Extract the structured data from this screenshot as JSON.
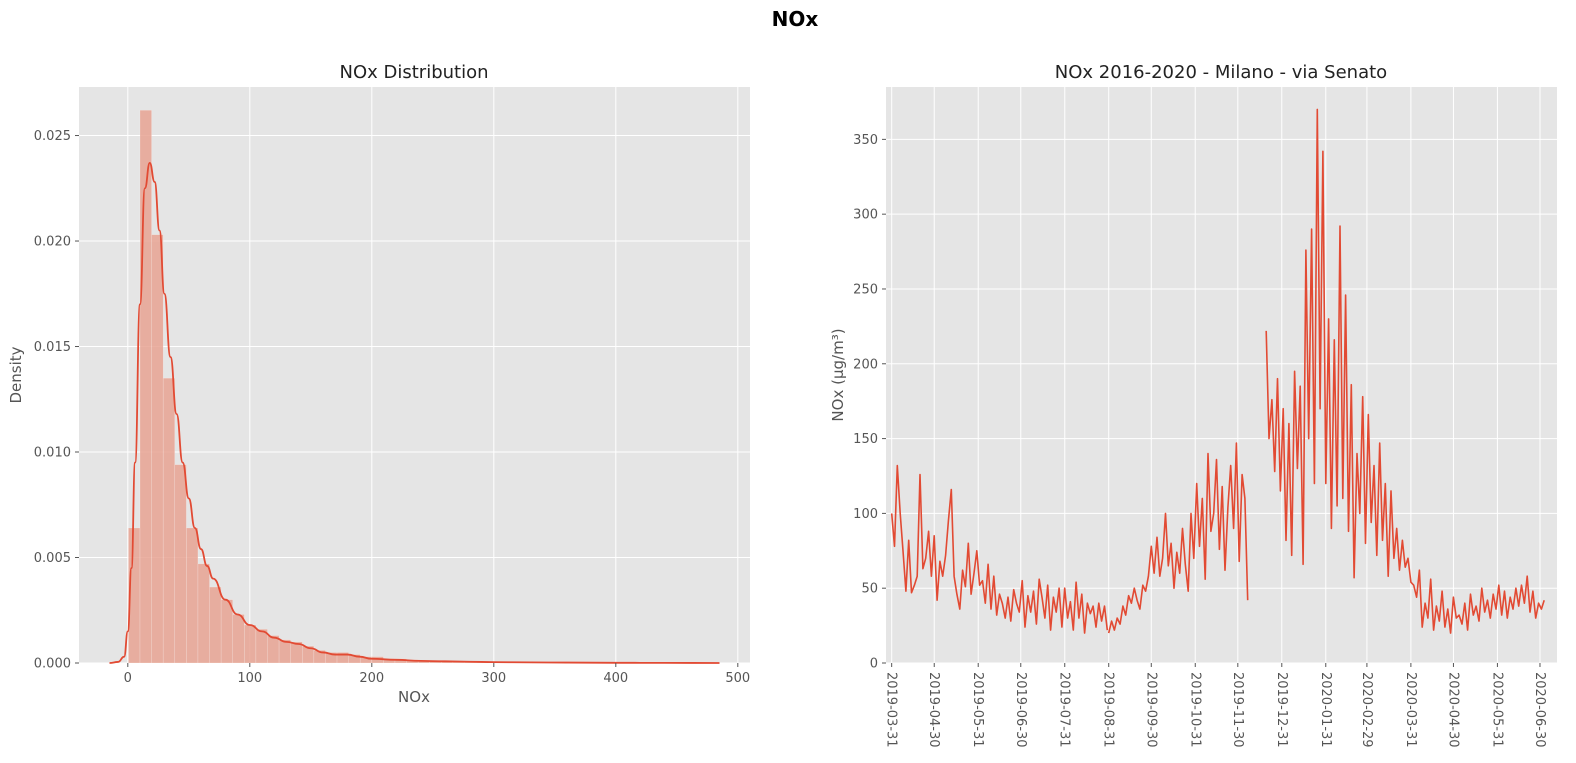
{
  "figure": {
    "suptitle": "NOx"
  },
  "colors": {
    "line": "#E24A33",
    "bar_fill": "#E8A393",
    "axes_bg": "#E5E5E5",
    "grid": "#FFFFFF"
  },
  "chart_data": [
    {
      "type": "bar",
      "title": "NOx Distribution",
      "xlabel": "NOx",
      "ylabel": "Density",
      "xlim": [
        -40,
        510
      ],
      "ylim": [
        0,
        0.0273
      ],
      "xticks": [
        0,
        100,
        200,
        300,
        400,
        500
      ],
      "xtick_labels": [
        "0",
        "100",
        "200",
        "300",
        "400",
        "500"
      ],
      "yticks": [
        0,
        0.005,
        0.01,
        0.015,
        0.02,
        0.025
      ],
      "ytick_labels": [
        "0.000",
        "0.005",
        "0.010",
        "0.015",
        "0.020",
        "0.025"
      ],
      "bin_width": 9.5,
      "bins": [
        {
          "x0": 0.5,
          "h": 0.0064
        },
        {
          "x0": 10,
          "h": 0.0262
        },
        {
          "x0": 19.5,
          "h": 0.0203
        },
        {
          "x0": 29,
          "h": 0.0135
        },
        {
          "x0": 38.5,
          "h": 0.0094
        },
        {
          "x0": 48,
          "h": 0.0064
        },
        {
          "x0": 57.5,
          "h": 0.0047
        },
        {
          "x0": 67,
          "h": 0.0036
        },
        {
          "x0": 76.5,
          "h": 0.003
        },
        {
          "x0": 86,
          "h": 0.0023
        },
        {
          "x0": 95.5,
          "h": 0.0018
        },
        {
          "x0": 105,
          "h": 0.0016
        },
        {
          "x0": 114.5,
          "h": 0.0013
        },
        {
          "x0": 124,
          "h": 0.0011
        },
        {
          "x0": 133.5,
          "h": 0.001
        },
        {
          "x0": 143,
          "h": 0.0008
        },
        {
          "x0": 152.5,
          "h": 0.0006
        },
        {
          "x0": 162,
          "h": 0.0005
        },
        {
          "x0": 171.5,
          "h": 0.0005
        },
        {
          "x0": 181,
          "h": 0.0004
        },
        {
          "x0": 190.5,
          "h": 0.0003
        },
        {
          "x0": 200,
          "h": 0.0003
        },
        {
          "x0": 209.5,
          "h": 0.0002
        },
        {
          "x0": 219,
          "h": 0.0002
        },
        {
          "x0": 228.5,
          "h": 0.00015
        },
        {
          "x0": 238,
          "h": 0.00012
        },
        {
          "x0": 247.5,
          "h": 0.0001
        },
        {
          "x0": 257,
          "h": 0.0001
        },
        {
          "x0": 266.5,
          "h": 8e-05
        },
        {
          "x0": 276,
          "h": 7e-05
        },
        {
          "x0": 285.5,
          "h": 6e-05
        },
        {
          "x0": 295,
          "h": 5e-05
        },
        {
          "x0": 304.5,
          "h": 5e-05
        },
        {
          "x0": 314,
          "h": 4e-05
        },
        {
          "x0": 323.5,
          "h": 3e-05
        },
        {
          "x0": 333,
          "h": 3e-05
        },
        {
          "x0": 342.5,
          "h": 2e-05
        },
        {
          "x0": 352,
          "h": 2e-05
        },
        {
          "x0": 361.5,
          "h": 2e-05
        },
        {
          "x0": 371,
          "h": 1e-05
        },
        {
          "x0": 380.5,
          "h": 1e-05
        },
        {
          "x0": 390,
          "h": 1e-05
        },
        {
          "x0": 399.5,
          "h": 1e-05
        },
        {
          "x0": 409,
          "h": 1e-05
        },
        {
          "x0": 418.5,
          "h": 1e-05
        },
        {
          "x0": 428,
          "h": 1e-05
        },
        {
          "x0": 437.5,
          "h": 1e-05
        },
        {
          "x0": 447,
          "h": 1e-05
        },
        {
          "x0": 456.5,
          "h": 1e-05
        },
        {
          "x0": 466,
          "h": 1e-05
        },
        {
          "x0": 475.5,
          "h": 1e-05
        }
      ],
      "kde": {
        "x": [
          -15,
          -8,
          -3,
          0,
          3,
          6,
          10,
          14,
          18,
          22,
          26,
          30,
          35,
          40,
          45,
          50,
          55,
          60,
          65,
          70,
          80,
          90,
          100,
          110,
          120,
          130,
          140,
          150,
          160,
          170,
          180,
          190,
          200,
          220,
          240,
          260,
          280,
          300,
          330,
          360,
          400,
          440,
          485
        ],
        "y": [
          0.0,
          5e-05,
          0.0003,
          0.0015,
          0.0045,
          0.0095,
          0.017,
          0.0225,
          0.0237,
          0.0228,
          0.0205,
          0.0175,
          0.0145,
          0.0118,
          0.0095,
          0.0078,
          0.0064,
          0.0054,
          0.0046,
          0.004,
          0.003,
          0.0023,
          0.0018,
          0.0015,
          0.0012,
          0.001,
          0.0009,
          0.0007,
          0.0005,
          0.0004,
          0.0004,
          0.0003,
          0.0002,
          0.00015,
          0.0001,
          8e-05,
          6e-05,
          4e-05,
          3e-05,
          2e-05,
          1e-05,
          5e-06,
          0.0
        ]
      }
    },
    {
      "type": "line",
      "title": "NOx 2016-2020 - Milano - via Senato",
      "xlabel": "",
      "ylabel": "NOx (µg/m³)",
      "xlim": [
        -4,
        469
      ],
      "ylim": [
        0,
        385
      ],
      "yticks": [
        0,
        50,
        100,
        150,
        200,
        250,
        300,
        350
      ],
      "ytick_labels": [
        "0",
        "50",
        "100",
        "150",
        "200",
        "250",
        "300",
        "350"
      ],
      "xticks": [
        0,
        30,
        61,
        91,
        122,
        153,
        183,
        214,
        244,
        275,
        306,
        335,
        366,
        396,
        427,
        457
      ],
      "xtick_labels": [
        "2019-03-31",
        "2019-04-30",
        "2019-05-31",
        "2019-06-30",
        "2019-07-31",
        "2019-08-31",
        "2019-09-30",
        "2019-10-31",
        "2019-11-30",
        "2019-12-31",
        "2020-01-31",
        "2020-02-29",
        "2020-03-31",
        "2020-04-30",
        "2020-05-31",
        "2020-06-30"
      ],
      "x_unit": "days since 2019-03-31",
      "segments": [
        {
          "x": [
            0,
            2,
            4,
            6,
            8,
            10,
            12,
            14,
            16,
            18,
            20,
            22,
            24,
            26,
            28,
            30,
            32,
            34,
            36,
            38,
            40,
            42,
            44,
            46,
            48,
            50,
            52,
            54,
            56,
            58,
            60,
            62,
            64,
            66,
            68,
            70,
            72,
            74,
            76,
            78,
            80,
            82,
            84,
            86,
            88,
            90,
            92,
            94,
            96,
            98,
            100,
            102,
            104,
            106,
            108,
            110,
            112,
            114,
            116,
            118,
            120,
            122,
            124,
            126,
            128,
            130,
            132,
            134,
            136,
            138,
            140,
            142,
            144,
            146,
            148,
            150,
            152
          ],
          "y": [
            100,
            78,
            132,
            100,
            75,
            48,
            82,
            47,
            52,
            58,
            126,
            63,
            70,
            88,
            58,
            85,
            42,
            68,
            58,
            72,
            95,
            116,
            58,
            46,
            36,
            62,
            51,
            80,
            46,
            60,
            75,
            52,
            55,
            40,
            66,
            36,
            58,
            32,
            46,
            40,
            30,
            44,
            28,
            49,
            40,
            34,
            55,
            24,
            45,
            34,
            48,
            26,
            56,
            44,
            30,
            52,
            22,
            44,
            34,
            50,
            24,
            50,
            30,
            41,
            22,
            54,
            30,
            46,
            20,
            40,
            33,
            38,
            24,
            40,
            28,
            38,
            22
          ]
        },
        {
          "x": [
            153,
            155,
            157,
            159,
            161,
            163,
            165,
            167,
            169,
            171,
            173,
            175,
            177,
            179,
            181,
            183,
            185,
            187,
            189,
            191,
            193,
            195,
            197,
            199,
            201,
            203,
            205,
            207,
            209,
            211,
            213,
            215,
            217,
            219,
            221,
            223,
            225,
            227,
            229,
            231,
            233,
            235,
            237,
            239,
            241,
            243,
            245,
            247,
            249,
            251
          ],
          "y": [
            20,
            28,
            22,
            30,
            26,
            38,
            32,
            45,
            40,
            50,
            42,
            36,
            52,
            48,
            58,
            78,
            60,
            84,
            58,
            70,
            100,
            65,
            80,
            50,
            74,
            60,
            90,
            66,
            48,
            100,
            70,
            120,
            78,
            110,
            56,
            140,
            88,
            100,
            136,
            76,
            118,
            62,
            104,
            132,
            90,
            147,
            68,
            126,
            110,
            42
          ]
        },
        {
          "x": [
            264,
            266,
            268,
            270,
            272,
            274,
            276,
            278,
            280,
            282,
            284,
            286,
            288,
            290,
            292,
            294,
            296,
            298,
            300,
            302,
            304,
            306,
            308,
            310,
            312,
            314,
            316,
            318,
            320,
            322,
            324,
            326,
            328,
            330,
            332,
            334,
            336,
            338,
            340,
            342,
            344,
            346,
            348,
            350,
            352,
            354,
            356,
            358,
            360,
            362,
            364,
            366,
            368,
            370,
            372,
            374,
            376,
            378,
            380,
            382,
            384,
            386,
            388,
            390,
            392,
            394,
            396,
            398,
            400,
            402,
            404,
            406,
            408,
            410,
            412,
            414,
            416,
            418,
            420,
            422,
            424,
            426,
            428,
            430,
            432,
            434,
            436,
            438,
            440,
            442,
            444,
            446,
            448,
            450,
            452,
            454,
            456,
            458,
            460
          ],
          "y": [
            222,
            150,
            176,
            128,
            190,
            115,
            170,
            82,
            160,
            72,
            195,
            130,
            185,
            66,
            276,
            150,
            290,
            120,
            370,
            170,
            342,
            120,
            230,
            90,
            216,
            105,
            292,
            110,
            246,
            88,
            186,
            57,
            140,
            100,
            178,
            80,
            166,
            94,
            132,
            72,
            147,
            82,
            120,
            58,
            115,
            70,
            90,
            62,
            82,
            64,
            70,
            54,
            52,
            44,
            62,
            24,
            40,
            30,
            56,
            22,
            38,
            28,
            48,
            24,
            36,
            20,
            44,
            30,
            32,
            26,
            40,
            22,
            46,
            32,
            38,
            28,
            50,
            34,
            42,
            30,
            46,
            36,
            52,
            32,
            48,
            30,
            44,
            36,
            50,
            38,
            52,
            40,
            58,
            34,
            48,
            30,
            40,
            36,
            42
          ]
        }
      ]
    }
  ]
}
